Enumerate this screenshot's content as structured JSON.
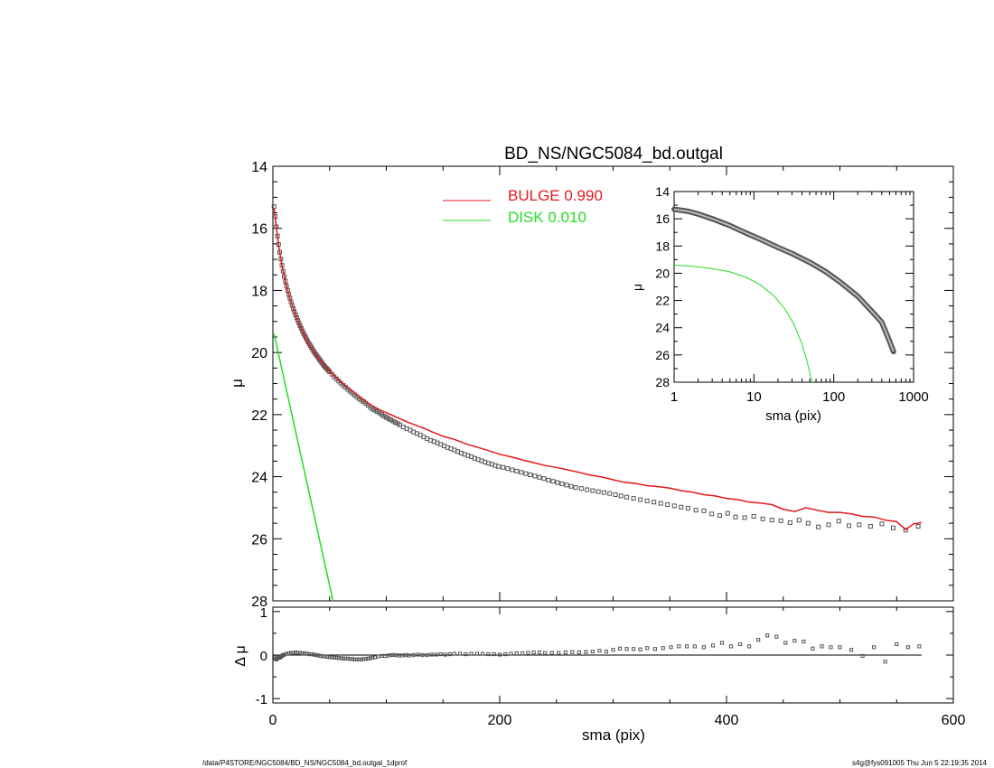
{
  "chart_data": [
    {
      "type": "scatter",
      "title": "BD_NS/NGC5084_bd.outgal",
      "xlabel": "",
      "ylabel": "μ",
      "xlim": [
        0,
        600
      ],
      "ylim": [
        28,
        14
      ],
      "y_inverted": true,
      "x_tick_labels": [
        "0",
        "200",
        "400",
        "600"
      ],
      "y_tick_labels": [
        "14",
        "16",
        "18",
        "20",
        "22",
        "24",
        "26",
        "28"
      ],
      "legend": [
        {
          "label": "BULGE  0.990",
          "color": "#e31a1c"
        },
        {
          "label": "DISK  0.010",
          "color": "#22dd22"
        }
      ],
      "legend_position": "top-center",
      "series": [
        {
          "kind": "points",
          "color": "#555555",
          "x": [
            1,
            2,
            3,
            4,
            5,
            6,
            7,
            8,
            9,
            10,
            11,
            12,
            13,
            14,
            15,
            16,
            17,
            18,
            19,
            20,
            21,
            22,
            23,
            24,
            25,
            26,
            27,
            28,
            29,
            30,
            31,
            32,
            33,
            34,
            35,
            36,
            37,
            38,
            39,
            40,
            41,
            42,
            43,
            44,
            45,
            46,
            47,
            48,
            49,
            50,
            52,
            54,
            56,
            58,
            60,
            62,
            64,
            66,
            68,
            70,
            72,
            74,
            76,
            78,
            80,
            82,
            84,
            86,
            88,
            90,
            92,
            94,
            96,
            98,
            100,
            102,
            104,
            106,
            108,
            110,
            112,
            115,
            118,
            121,
            124,
            127,
            130,
            133,
            136,
            139,
            142,
            145,
            148,
            151,
            154,
            157,
            160,
            163,
            166,
            169,
            172,
            175,
            178,
            181,
            184,
            187,
            190,
            193,
            196,
            199,
            203,
            207,
            211,
            215,
            219,
            223,
            227,
            231,
            235,
            239,
            243,
            247,
            251,
            255,
            259,
            263,
            267,
            272,
            277,
            282,
            287,
            292,
            297,
            302,
            307,
            312,
            318,
            324,
            330,
            336,
            342,
            348,
            354,
            360,
            366,
            373,
            380,
            387,
            394,
            401,
            408,
            416,
            424,
            432,
            440,
            448,
            456,
            464,
            472,
            481,
            490,
            499,
            508,
            517,
            527,
            537,
            547,
            558,
            569
          ],
          "y": [
            15.3,
            15.62,
            15.95,
            16.25,
            16.52,
            16.77,
            16.99,
            17.19,
            17.38,
            17.55,
            17.71,
            17.86,
            18.0,
            18.13,
            18.25,
            18.37,
            18.48,
            18.59,
            18.69,
            18.79,
            18.88,
            18.97,
            19.06,
            19.14,
            19.22,
            19.3,
            19.38,
            19.45,
            19.52,
            19.59,
            19.66,
            19.72,
            19.78,
            19.84,
            19.9,
            19.96,
            20.02,
            20.07,
            20.12,
            20.17,
            20.22,
            20.27,
            20.32,
            20.37,
            20.42,
            20.46,
            20.5,
            20.54,
            20.58,
            20.62,
            20.7,
            20.78,
            20.85,
            20.92,
            20.99,
            21.06,
            21.12,
            21.19,
            21.25,
            21.31,
            21.37,
            21.43,
            21.49,
            21.54,
            21.58,
            21.64,
            21.7,
            21.77,
            21.82,
            21.86,
            21.9,
            21.95,
            22.0,
            22.05,
            22.09,
            22.13,
            22.17,
            22.21,
            22.25,
            22.29,
            22.33,
            22.4,
            22.45,
            22.5,
            22.56,
            22.61,
            22.66,
            22.72,
            22.78,
            22.83,
            22.87,
            22.91,
            22.96,
            23.01,
            23.06,
            23.1,
            23.14,
            23.19,
            23.24,
            23.28,
            23.32,
            23.36,
            23.41,
            23.45,
            23.49,
            23.53,
            23.57,
            23.6,
            23.64,
            23.67,
            23.7,
            23.74,
            23.78,
            23.82,
            23.86,
            23.9,
            23.94,
            23.98,
            24.02,
            24.06,
            24.11,
            24.15,
            24.19,
            24.23,
            24.27,
            24.31,
            24.35,
            24.38,
            24.42,
            24.45,
            24.48,
            24.51,
            24.54,
            24.58,
            24.62,
            24.66,
            24.7,
            24.74,
            24.78,
            24.82,
            24.86,
            24.9,
            24.94,
            24.98,
            25.02,
            25.08,
            25.1,
            25.2,
            25.25,
            25.18,
            25.3,
            25.32,
            25.28,
            25.36,
            25.4,
            25.42,
            25.48,
            25.4,
            25.5,
            25.62,
            25.55,
            25.43,
            25.58,
            25.55,
            25.6,
            25.52,
            25.65,
            25.72,
            25.6
          ]
        },
        {
          "kind": "line",
          "name": "BULGE",
          "color": "#e31a1c",
          "x": [
            1,
            3,
            5,
            8,
            11,
            15,
            20,
            25,
            30,
            35,
            40,
            45,
            50,
            55,
            60,
            65,
            70,
            75,
            80,
            85,
            90,
            95,
            100,
            105,
            110,
            115,
            120,
            125,
            130,
            135,
            140,
            145,
            150,
            160,
            170,
            180,
            190,
            200,
            210,
            220,
            230,
            240,
            250,
            260,
            270,
            280,
            290,
            300,
            310,
            320,
            330,
            340,
            350,
            360,
            370,
            380,
            390,
            400,
            410,
            420,
            430,
            440,
            450,
            460,
            470,
            480,
            490,
            500,
            510,
            520,
            530,
            540,
            550,
            558,
            565,
            572
          ],
          "y": [
            15.35,
            15.95,
            16.55,
            17.2,
            17.72,
            18.26,
            18.8,
            19.24,
            19.62,
            19.92,
            20.17,
            20.4,
            20.6,
            20.78,
            20.95,
            21.1,
            21.24,
            21.38,
            21.52,
            21.66,
            21.76,
            21.86,
            21.94,
            22.02,
            22.1,
            22.18,
            22.26,
            22.33,
            22.4,
            22.47,
            22.55,
            22.62,
            22.7,
            22.8,
            22.94,
            23.05,
            23.16,
            23.28,
            23.36,
            23.46,
            23.55,
            23.64,
            23.7,
            23.78,
            23.86,
            23.95,
            24.01,
            24.1,
            24.18,
            24.22,
            24.29,
            24.32,
            24.37,
            24.45,
            24.5,
            24.58,
            24.62,
            24.7,
            24.74,
            24.82,
            24.85,
            24.9,
            25.05,
            25.12,
            25.0,
            25.08,
            25.15,
            25.15,
            25.2,
            25.28,
            25.3,
            25.4,
            25.45,
            25.7,
            25.52,
            25.48
          ]
        },
        {
          "kind": "line",
          "name": "DISK",
          "color": "#22dd22",
          "x": [
            1,
            53
          ],
          "y": [
            19.4,
            28.0
          ]
        }
      ]
    },
    {
      "type": "scatter",
      "title": "",
      "xlabel": "sma (pix)",
      "ylabel": "μ",
      "x_scale": "log",
      "xlim": [
        1,
        1000
      ],
      "ylim": [
        28,
        14
      ],
      "y_inverted": true,
      "x_tick_labels": [
        "1",
        "10",
        "100",
        "1000"
      ],
      "y_tick_labels": [
        "14",
        "16",
        "18",
        "20",
        "22",
        "24",
        "26",
        "28"
      ],
      "legend_position": "none",
      "series": [
        {
          "kind": "thick_line",
          "color": "#555555",
          "x": [
            1,
            1.5,
            2,
            3,
            5,
            8,
            12,
            20,
            30,
            50,
            80,
            120,
            200,
            300,
            400,
            500,
            560
          ],
          "y": [
            15.3,
            15.45,
            15.65,
            16.0,
            16.5,
            17.05,
            17.5,
            18.1,
            18.55,
            19.2,
            19.9,
            20.65,
            21.7,
            22.8,
            23.6,
            25.0,
            25.75
          ]
        },
        {
          "kind": "line",
          "color": "#22dd22",
          "x": [
            1,
            2,
            3,
            5,
            8,
            12,
            18,
            25,
            32,
            40,
            46,
            50,
            53
          ],
          "y": [
            19.4,
            19.52,
            19.65,
            19.9,
            20.3,
            20.85,
            21.7,
            22.7,
            23.8,
            25.2,
            26.4,
            27.3,
            28.0
          ]
        }
      ]
    },
    {
      "type": "scatter",
      "title": "",
      "xlabel": "sma (pix)",
      "ylabel": "Δ μ",
      "xlim": [
        0,
        600
      ],
      "ylim": [
        -1.1,
        1.1
      ],
      "x_tick_labels": [
        "0",
        "200",
        "400",
        "600"
      ],
      "y_tick_labels": [
        "1",
        "0",
        "-1"
      ],
      "zero_line": true,
      "legend_position": "none",
      "series": [
        {
          "kind": "points",
          "color": "#555555",
          "x": [
            1,
            2,
            3,
            4,
            5,
            6,
            7,
            8,
            9,
            10,
            12,
            14,
            16,
            18,
            20,
            22,
            24,
            26,
            28,
            30,
            32,
            34,
            36,
            38,
            40,
            42,
            44,
            46,
            48,
            50,
            52,
            54,
            56,
            58,
            60,
            62,
            64,
            66,
            68,
            70,
            72,
            74,
            76,
            78,
            80,
            82,
            84,
            86,
            88,
            90,
            93,
            96,
            99,
            102,
            105,
            108,
            111,
            114,
            117,
            120,
            124,
            128,
            132,
            136,
            140,
            144,
            148,
            152,
            156,
            160,
            165,
            170,
            175,
            180,
            185,
            190,
            195,
            200,
            205,
            210,
            215,
            220,
            225,
            230,
            235,
            240,
            246,
            252,
            258,
            264,
            270,
            276,
            282,
            288,
            294,
            300,
            306,
            312,
            318,
            324,
            330,
            337,
            344,
            351,
            358,
            365,
            372,
            380,
            388,
            396,
            404,
            412,
            420,
            428,
            436,
            444,
            452,
            460,
            468,
            476,
            484,
            492,
            500,
            510,
            520,
            530,
            540,
            550,
            560,
            570
          ],
          "y": [
            -0.05,
            -0.08,
            -0.1,
            -0.08,
            -0.05,
            -0.06,
            -0.04,
            -0.02,
            0.0,
            0.01,
            0.03,
            0.04,
            0.05,
            0.05,
            0.06,
            0.05,
            0.05,
            0.04,
            0.04,
            0.03,
            0.02,
            0.02,
            0.01,
            0.0,
            -0.01,
            -0.02,
            -0.03,
            -0.03,
            -0.04,
            -0.05,
            -0.05,
            -0.06,
            -0.06,
            -0.07,
            -0.07,
            -0.08,
            -0.08,
            -0.08,
            -0.09,
            -0.09,
            -0.1,
            -0.1,
            -0.1,
            -0.1,
            -0.09,
            -0.09,
            -0.08,
            -0.07,
            -0.06,
            -0.05,
            -0.03,
            -0.02,
            -0.02,
            -0.01,
            0.0,
            0.0,
            -0.01,
            -0.01,
            0.0,
            -0.01,
            0.0,
            0.01,
            0.0,
            0.0,
            0.01,
            0.01,
            0.02,
            0.01,
            0.02,
            0.03,
            0.03,
            0.02,
            0.03,
            0.03,
            0.03,
            0.02,
            0.02,
            0.01,
            0.02,
            0.03,
            0.04,
            0.04,
            0.05,
            0.06,
            0.06,
            0.05,
            0.05,
            0.05,
            0.06,
            0.07,
            0.06,
            0.07,
            0.08,
            0.1,
            0.08,
            0.12,
            0.15,
            0.14,
            0.14,
            0.13,
            0.16,
            0.14,
            0.16,
            0.18,
            0.2,
            0.2,
            0.2,
            0.18,
            0.22,
            0.28,
            0.2,
            0.25,
            0.2,
            0.35,
            0.45,
            0.42,
            0.28,
            0.33,
            0.31,
            0.15,
            0.2,
            0.18,
            0.18,
            0.12,
            -0.02,
            0.18,
            -0.15,
            0.25,
            0.18,
            0.2
          ]
        }
      ]
    }
  ],
  "footer": {
    "left": "/data/P4STORE/NGC5084/BD_NS/NGC5084_bd.outgal_1dprof",
    "right": "s4g@fys091005  Thu Jun  5 22:19:35 2014"
  }
}
